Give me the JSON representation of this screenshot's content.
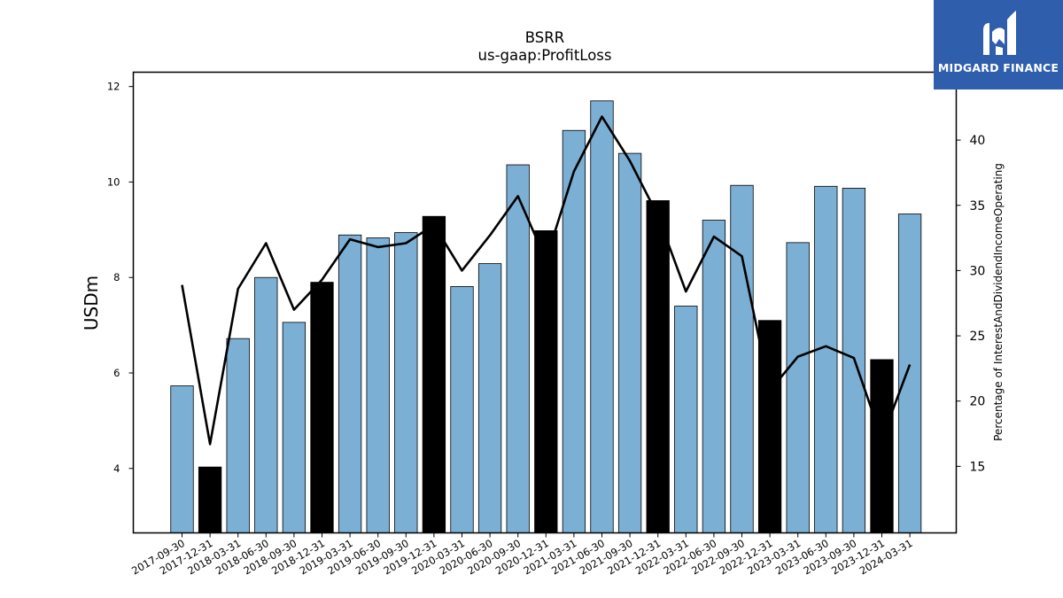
{
  "chart_data": {
    "type": "bar",
    "title": "BSRR",
    "subtitle": "us-gaap:ProfitLoss",
    "ylabel": "USDm",
    "ylabel_right": "Percentage of InterestAndDividendIncomeOperating",
    "ylim": [
      2.65,
      12.3
    ],
    "ylim_right": [
      9.9,
      45.2
    ],
    "yticks": [
      4,
      6,
      8,
      10,
      12
    ],
    "yticks_right": [
      15,
      20,
      25,
      30,
      35,
      40
    ],
    "categories": [
      "2017-09-30",
      "2017-12-31",
      "2018-03-31",
      "2018-06-30",
      "2018-09-30",
      "2018-12-31",
      "2019-03-31",
      "2019-06-30",
      "2019-09-30",
      "2019-12-31",
      "2020-03-31",
      "2020-06-30",
      "2020-09-30",
      "2020-12-31",
      "2021-03-31",
      "2021-06-30",
      "2021-09-30",
      "2021-12-31",
      "2022-03-31",
      "2022-06-30",
      "2022-09-30",
      "2022-12-31",
      "2023-03-31",
      "2023-06-30",
      "2023-09-30",
      "2023-12-31",
      "2024-03-31"
    ],
    "series": [
      {
        "type": "bar",
        "values": [
          5.73,
          4.03,
          6.72,
          8.0,
          7.06,
          7.9,
          8.89,
          8.83,
          8.94,
          9.28,
          7.81,
          8.29,
          10.36,
          8.98,
          11.08,
          11.7,
          10.6,
          9.61,
          7.4,
          9.2,
          9.93,
          7.1,
          8.73,
          9.91,
          9.87,
          6.28,
          9.33
        ],
        "highlight": [
          false,
          true,
          false,
          false,
          false,
          true,
          false,
          false,
          false,
          true,
          false,
          false,
          false,
          true,
          false,
          false,
          false,
          true,
          false,
          false,
          false,
          true,
          false,
          false,
          false,
          true,
          false
        ],
        "color": "#7bafd4",
        "highlight_color": "#000000"
      },
      {
        "type": "line",
        "axis": "right",
        "values": [
          28.9,
          16.7,
          28.6,
          32.1,
          27.0,
          29.3,
          32.4,
          31.8,
          32.1,
          33.5,
          30.0,
          32.7,
          35.7,
          30.8,
          37.6,
          41.8,
          38.4,
          34.2,
          28.4,
          32.6,
          31.1,
          20.8,
          23.4,
          24.2,
          23.3,
          17.1,
          22.8
        ],
        "color": "#000000"
      }
    ],
    "grid": false
  },
  "logo": {
    "text": "MIDGARD FINANCE",
    "bg": "#2f5eac"
  }
}
